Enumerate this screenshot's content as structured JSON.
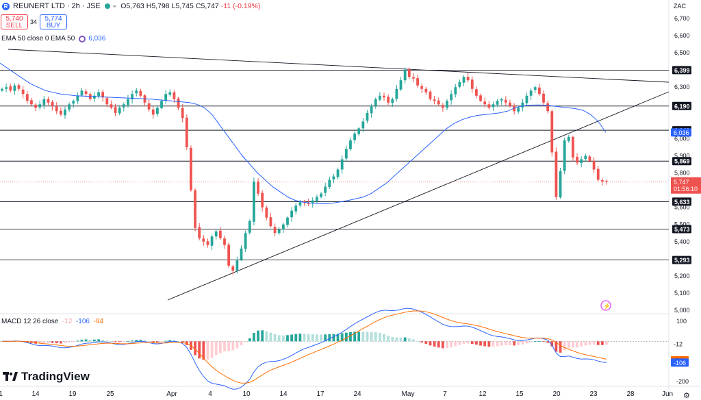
{
  "header": {
    "symbol": "REUNERT LTD · 2h · JSE",
    "open": "O5,763",
    "high": "H5,798",
    "low": "L5,745",
    "close": "C5,747",
    "change": "-11 (-0.19%)",
    "sell_price": "5,740",
    "sell_label": "SELL",
    "spread": "34",
    "buy_price": "5,774",
    "buy_label": "BUY",
    "ema_label": "EMA 50 close 0 EMA 50",
    "ema_value": "6,036",
    "currency": "ZAC"
  },
  "macd_legend": {
    "label": "MACD 12 26 close",
    "hist": "-12",
    "macd": "-106",
    "signal": "-94"
  },
  "branding": "TradingView",
  "colors": {
    "up": "#26a69a",
    "down": "#ef5350",
    "ema": "#2962ff",
    "signal": "#ff6d00",
    "price_tag": "#ef5350"
  },
  "chart_data": [
    {
      "type": "candlestick",
      "title": "REUNERT LTD · 2h · JSE",
      "ylim": [
        5000,
        6800
      ],
      "y_ticks": [
        "6,700",
        "6,600",
        "6,500",
        "6,300",
        "6,000",
        "5,900",
        "5,800",
        "5,600",
        "5,500",
        "5,400",
        "5,200",
        "5,100",
        "5,000"
      ],
      "x_ticks": [
        "1",
        "14",
        "19",
        "25",
        "Apr",
        "4",
        "10",
        "14",
        "17",
        "24",
        "May",
        "7",
        "12",
        "15",
        "20",
        "23",
        "28",
        "Jun"
      ],
      "horizontal_levels": [
        "6,399",
        "6,190",
        "6,049",
        "5,869",
        "5,633",
        "5,473",
        "5,293"
      ],
      "last_price": "5,747",
      "countdown": "01:56:10",
      "ema_value": "6,036",
      "trend_lines": [
        {
          "from": [
            "1",
            6530
          ],
          "to": [
            "end",
            6330
          ]
        },
        {
          "from": [
            "Apr",
            5060
          ],
          "to": [
            "end",
            6280
          ]
        }
      ],
      "price_closes": [
        6290,
        6300,
        6280,
        6310,
        6290,
        6260,
        6220,
        6200,
        6180,
        6200,
        6230,
        6210,
        6190,
        6160,
        6140,
        6170,
        6200,
        6220,
        6250,
        6280,
        6260,
        6230,
        6250,
        6270,
        6240,
        6200,
        6180,
        6150,
        6180,
        6200,
        6230,
        6260,
        6280,
        6250,
        6210,
        6170,
        6140,
        6180,
        6220,
        6260,
        6270,
        6230,
        6180,
        6120,
        5950,
        5700,
        5480,
        5420,
        5400,
        5380,
        5430,
        5460,
        5420,
        5380,
        5260,
        5230,
        5290,
        5360,
        5450,
        5520,
        5750,
        5680,
        5600,
        5540,
        5490,
        5450,
        5470,
        5500,
        5540,
        5580,
        5610,
        5630,
        5630,
        5620,
        5640,
        5660,
        5680,
        5720,
        5760,
        5780,
        5820,
        5880,
        5940,
        5990,
        6030,
        6060,
        6100,
        6150,
        6190,
        6230,
        6250,
        6240,
        6210,
        6230,
        6290,
        6340,
        6400,
        6360,
        6350,
        6310,
        6290,
        6270,
        6230,
        6220,
        6200,
        6180,
        6220,
        6260,
        6300,
        6330,
        6360,
        6340,
        6290,
        6250,
        6220,
        6200,
        6180,
        6200,
        6220,
        6230,
        6210,
        6190,
        6160,
        6180,
        6210,
        6250,
        6280,
        6300,
        6260,
        6210,
        6160,
        5920,
        5660,
        5810,
        5990,
        6010,
        5890,
        5860,
        5880,
        5900,
        5870,
        5820,
        5760,
        5750,
        5747
      ],
      "ema50": [
        6440,
        6410,
        6380,
        6350,
        6320,
        6300,
        6280,
        6270,
        6260,
        6255,
        6250,
        6248,
        6246,
        6244,
        6242,
        6240,
        6238,
        6236,
        6234,
        6232,
        6230,
        6226,
        6222,
        6218,
        6214,
        6210,
        6200,
        6180,
        6140,
        6080,
        6020,
        5960,
        5900,
        5850,
        5800,
        5760,
        5720,
        5690,
        5660,
        5640,
        5630,
        5625,
        5622,
        5620,
        5625,
        5632,
        5640,
        5650,
        5660,
        5680,
        5710,
        5740,
        5780,
        5820,
        5860,
        5900,
        5940,
        5980,
        6020,
        6060,
        6090,
        6110,
        6125,
        6135,
        6140,
        6145,
        6150,
        6160,
        6180,
        6190,
        6195,
        6196,
        6195,
        6190,
        6185,
        6180,
        6175,
        6165,
        6140,
        6100,
        6036
      ],
      "macd": {
        "ylim": [
          -200,
          100
        ],
        "y_ticks": [
          "100",
          "0",
          "-100",
          "-200"
        ],
        "histogram_tail": [
          -12
        ],
        "macd_last": -106,
        "signal_last": -94,
        "hist_last": -12
      }
    }
  ]
}
